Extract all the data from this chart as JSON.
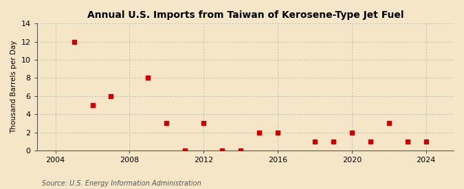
{
  "title": "Annual U.S. Imports from Taiwan of Kerosene-Type Jet Fuel",
  "ylabel": "Thousand Barrels per Day",
  "source": "Source: U.S. Energy Information Administration",
  "background_color": "#f5e6c8",
  "plot_background_color": "#f5e6c8",
  "marker_color": "#cc0000",
  "marker": "s",
  "marker_size": 4,
  "xlim": [
    2003,
    2025.5
  ],
  "ylim": [
    0,
    14
  ],
  "yticks": [
    0,
    2,
    4,
    6,
    8,
    10,
    12,
    14
  ],
  "xticks": [
    2004,
    2008,
    2012,
    2016,
    2020,
    2024
  ],
  "grid_color": "#aaaaaa",
  "data": {
    "years": [
      2005,
      2006,
      2007,
      2009,
      2010,
      2011,
      2012,
      2013,
      2014,
      2015,
      2016,
      2018,
      2019,
      2020,
      2021,
      2022,
      2023,
      2024
    ],
    "values": [
      12,
      5,
      6,
      8,
      3,
      0,
      3,
      0,
      0,
      2,
      2,
      1,
      1,
      2,
      1,
      3,
      1,
      1
    ]
  }
}
